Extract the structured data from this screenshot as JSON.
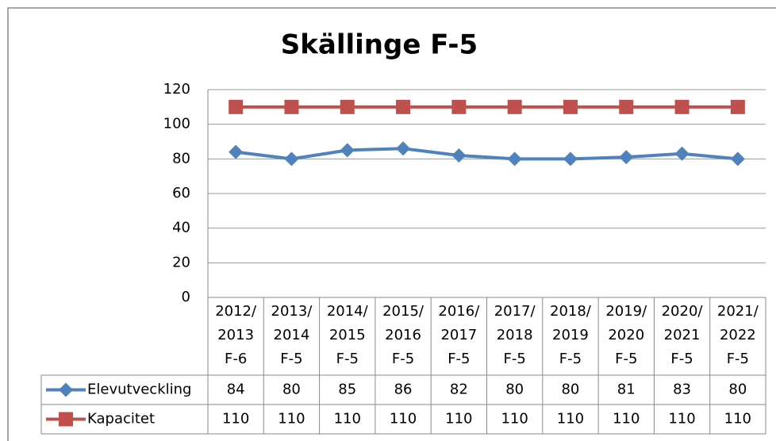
{
  "chart_data": {
    "type": "line",
    "title": "Skällinge F-5",
    "categories": [
      "2012/\n2013\nF-6",
      "2013/\n2014\nF-5",
      "2014/\n2015\nF-5",
      "2015/\n2016\nF-5",
      "2016/\n2017\nF-5",
      "2017/\n2018\nF-5",
      "2018/\n2019\nF-5",
      "2019/\n2020\nF-5",
      "2020/\n2021\nF-5",
      "2021/\n2022\nF-5"
    ],
    "series": [
      {
        "name": "Elevutveckling",
        "color": "#4f81bd",
        "marker": "diamond",
        "values": [
          84,
          80,
          85,
          86,
          82,
          80,
          80,
          81,
          83,
          80
        ]
      },
      {
        "name": "Kapacitet",
        "color": "#c0504d",
        "marker": "square",
        "values": [
          110,
          110,
          110,
          110,
          110,
          110,
          110,
          110,
          110,
          110
        ]
      }
    ],
    "ylim": [
      0,
      120
    ],
    "yticks": [
      0,
      20,
      40,
      60,
      80,
      100,
      120
    ],
    "grid": true,
    "data_table": true
  }
}
